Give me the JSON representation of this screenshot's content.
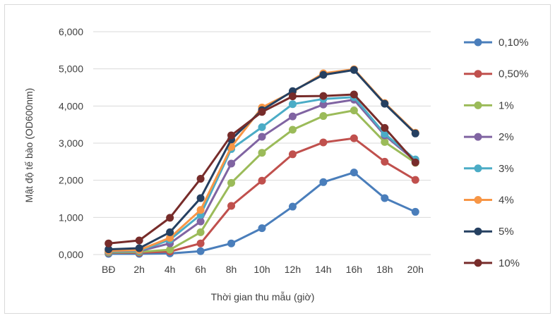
{
  "chart_data": {
    "type": "line",
    "xlabel": "Thời gian thu mẫu (giờ)",
    "ylabel": "Mật độ tế bào (OD600nm)",
    "categories": [
      "BĐ",
      "2h",
      "4h",
      "6h",
      "8h",
      "10h",
      "12h",
      "14h",
      "16h",
      "18h",
      "20h"
    ],
    "ylim": [
      0,
      6
    ],
    "yticks": [
      "0,000",
      "1,000",
      "2,000",
      "3,000",
      "4,000",
      "5,000",
      "6,000"
    ],
    "grid": "horizontal",
    "legend_position": "right",
    "series": [
      {
        "name": "0,10%",
        "color": "#4a7ebb",
        "values": [
          0.02,
          0.02,
          0.03,
          0.09,
          0.3,
          0.71,
          1.29,
          1.95,
          2.21,
          1.52,
          1.15
        ]
      },
      {
        "name": "0,50%",
        "color": "#c0504d",
        "values": [
          0.05,
          0.05,
          0.08,
          0.3,
          1.31,
          1.99,
          2.7,
          3.02,
          3.13,
          2.5,
          2.01
        ]
      },
      {
        "name": "1%",
        "color": "#9bbb59",
        "values": [
          0.06,
          0.07,
          0.13,
          0.6,
          1.93,
          2.74,
          3.36,
          3.73,
          3.88,
          3.03,
          2.47
        ]
      },
      {
        "name": "2%",
        "color": "#8064a2",
        "values": [
          0.08,
          0.09,
          0.3,
          0.89,
          2.45,
          3.17,
          3.72,
          4.04,
          4.17,
          3.21,
          2.52
        ]
      },
      {
        "name": "3%",
        "color": "#4bacc6",
        "values": [
          0.09,
          0.1,
          0.4,
          1.07,
          2.84,
          3.43,
          4.05,
          4.19,
          4.24,
          3.25,
          2.56
        ]
      },
      {
        "name": "4%",
        "color": "#f79646",
        "values": [
          0.1,
          0.12,
          0.45,
          1.2,
          2.9,
          3.96,
          4.38,
          4.88,
          4.99,
          4.08,
          3.28
        ]
      },
      {
        "name": "5%",
        "color": "#254061",
        "values": [
          0.14,
          0.17,
          0.6,
          1.52,
          3.1,
          3.89,
          4.4,
          4.84,
          4.97,
          4.06,
          3.26
        ]
      },
      {
        "name": "10%",
        "color": "#772c2a",
        "values": [
          0.3,
          0.38,
          0.99,
          2.04,
          3.21,
          3.84,
          4.26,
          4.27,
          4.31,
          3.41,
          2.48
        ]
      }
    ]
  }
}
